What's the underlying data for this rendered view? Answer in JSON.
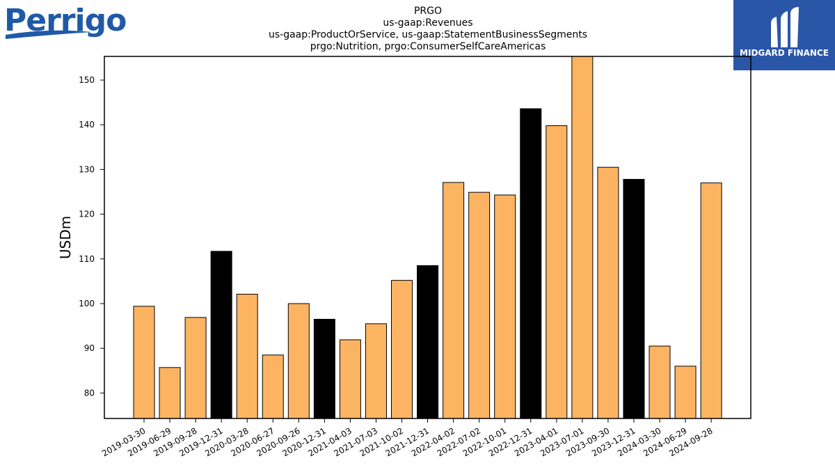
{
  "logos": {
    "company": "Perrigo",
    "publisher": "MIDGARD FINANCE"
  },
  "colors": {
    "bar_default": "#fdb462",
    "bar_highlight": "#000000",
    "bar_edge": "#000000",
    "publisher_bg": "#2a56a8",
    "company_brand": "#1f5aa6"
  },
  "chart_data": {
    "type": "bar",
    "title": [
      "PRGO",
      "us-gaap:Revenues",
      "us-gaap:ProductOrService, us-gaap:StatementBusinessSegments",
      "prgo:Nutrition, prgo:ConsumerSelfCareAmericas"
    ],
    "xlabel": "",
    "ylabel": "USDm",
    "ylim": [
      74.3,
      155.3
    ],
    "yticks": [
      80,
      90,
      100,
      110,
      120,
      130,
      140,
      150
    ],
    "grid": false,
    "categories": [
      "2019-03-30",
      "2019-06-29",
      "2019-09-28",
      "2019-12-31",
      "2020-03-28",
      "2020-06-27",
      "2020-09-26",
      "2020-12-31",
      "2021-04-03",
      "2021-07-03",
      "2021-10-02",
      "2021-12-31",
      "2022-04-02",
      "2022-07-02",
      "2022-10-01",
      "2022-12-31",
      "2023-04-01",
      "2023-07-01",
      "2023-09-30",
      "2023-12-31",
      "2024-03-30",
      "2024-06-29",
      "2024-09-28"
    ],
    "values": [
      99.4,
      85.7,
      96.9,
      111.7,
      102.1,
      88.5,
      100.0,
      96.5,
      91.9,
      95.5,
      105.2,
      108.5,
      127.1,
      124.9,
      124.3,
      143.6,
      139.8,
      155.3,
      130.5,
      127.8,
      90.5,
      86.0,
      127.0
    ],
    "highlighted": [
      false,
      false,
      false,
      true,
      false,
      false,
      false,
      true,
      false,
      false,
      false,
      true,
      false,
      false,
      false,
      true,
      false,
      false,
      false,
      true,
      false,
      false,
      false
    ]
  }
}
